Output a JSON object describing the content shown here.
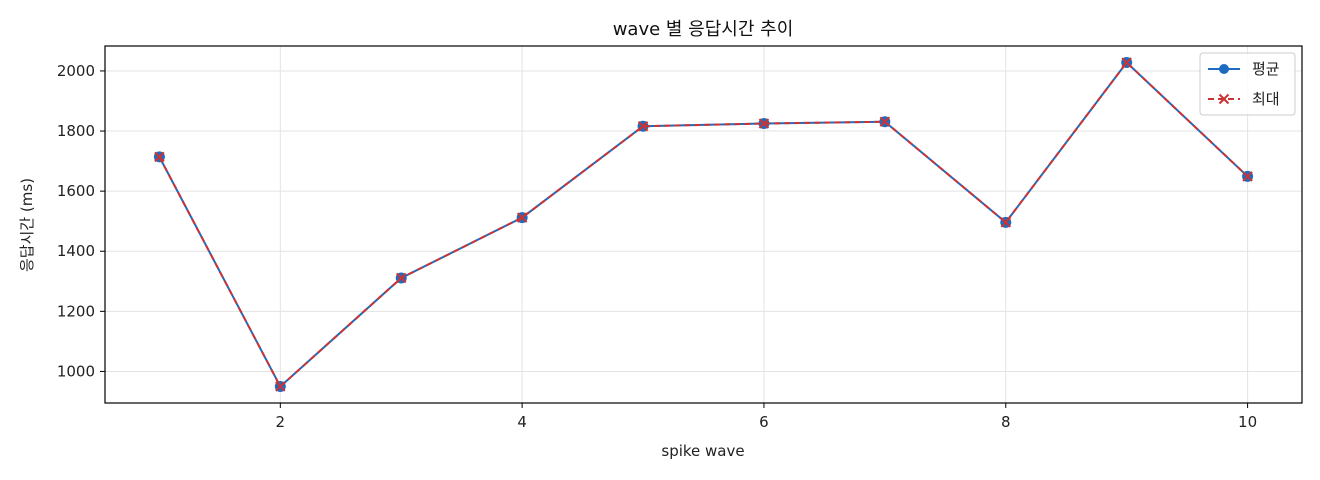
{
  "chart_data": {
    "type": "line",
    "title": "wave 별 응답시간 추이",
    "xlabel": "spike wave",
    "ylabel": "응답시간 (ms)",
    "x": [
      1,
      2,
      3,
      4,
      5,
      6,
      7,
      8,
      9,
      10
    ],
    "series": [
      {
        "name": "평균",
        "values": [
          1714,
          950,
          1311,
          1512,
          1816,
          1825,
          1831,
          1496,
          2028,
          1649
        ],
        "color": "#1f6bbf",
        "marker": "circle",
        "line_style": "solid"
      },
      {
        "name": "최대",
        "values": [
          1714,
          950,
          1311,
          1512,
          1816,
          1825,
          1831,
          1496,
          2028,
          1649
        ],
        "color": "#cc3333",
        "marker": "x",
        "line_style": "dashed"
      }
    ],
    "xlim": [
      0.55,
      10.45
    ],
    "ylim": [
      895,
      2083
    ],
    "xticks": [
      2,
      4,
      6,
      8,
      10
    ],
    "yticks": [
      1000,
      1200,
      1400,
      1600,
      1800,
      2000
    ],
    "grid": true,
    "legend_position": "top-right"
  }
}
